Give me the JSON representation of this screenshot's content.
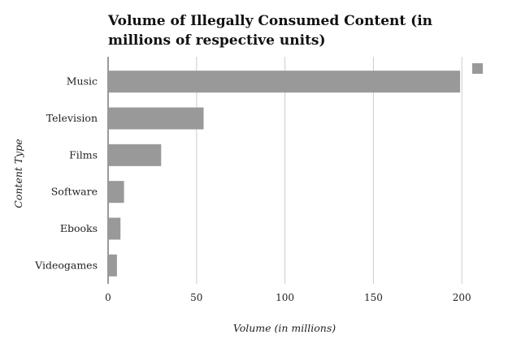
{
  "chart_data": {
    "type": "bar",
    "orientation": "horizontal",
    "title": "Volume of Illegally Consumed Content (in millions of respective units)",
    "xlabel": "Volume (in millions)",
    "ylabel": "Content Type",
    "categories": [
      "Music",
      "Television",
      "Films",
      "Software",
      "Ebooks",
      "Videogames"
    ],
    "values": [
      199,
      54,
      30,
      9,
      7,
      5
    ],
    "xlim": [
      0,
      210
    ],
    "xticks": [
      0,
      50,
      100,
      150,
      200
    ],
    "grid": true,
    "legend": "top-right",
    "bar_color": "#999999",
    "grid_color": "#cccccc"
  }
}
